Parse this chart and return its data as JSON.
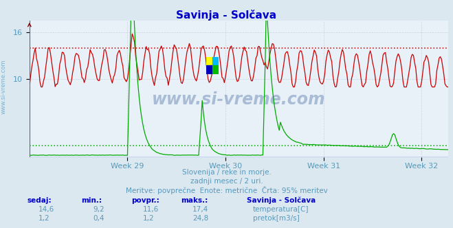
{
  "title": "Savinja - Solčava",
  "bg_color": "#dce8f0",
  "plot_bg_color": "#e8f0f8",
  "grid_color": "#c8d4e0",
  "x_labels": [
    "Week 29",
    "Week 30",
    "Week 31",
    "Week 32"
  ],
  "x_label_color": "#5599bb",
  "title_color": "#0000cc",
  "subtitle_lines": [
    "Slovenija / reke in morje.",
    "zadnji mesec / 2 uri.",
    "Meritve: povprečne  Enote: metrične  Črta: 95% meritev"
  ],
  "subtitle_color": "#5599bb",
  "footer_label_color": "#0000cc",
  "temp_color": "#cc0000",
  "flow_color": "#00aa00",
  "axis_color": "#880000",
  "blue_line_color": "#3366cc",
  "left_label_color": "#5599bb",
  "dotted_temp_level": 14.0,
  "dotted_flow_level": 1.5,
  "ylim_min": 0,
  "ylim_max": 17.5,
  "ylabel_ticks": [
    10,
    16
  ],
  "n_points": 360,
  "temp_min": 9.2,
  "temp_max": 17.4,
  "temp_avg": 11.6,
  "temp_now": 14.6,
  "flow_min": 0.4,
  "flow_max": 24.8,
  "flow_avg": 1.2,
  "flow_now": 1.2,
  "watermark": "www.si-vreme.com",
  "watermark_color": "#1a4488",
  "watermark_alpha": 0.3,
  "logo_colors": [
    "#ffff00",
    "#00bbff",
    "#0000bb",
    "#00bb00"
  ],
  "week_positions": [
    0,
    84,
    168,
    252,
    336
  ]
}
